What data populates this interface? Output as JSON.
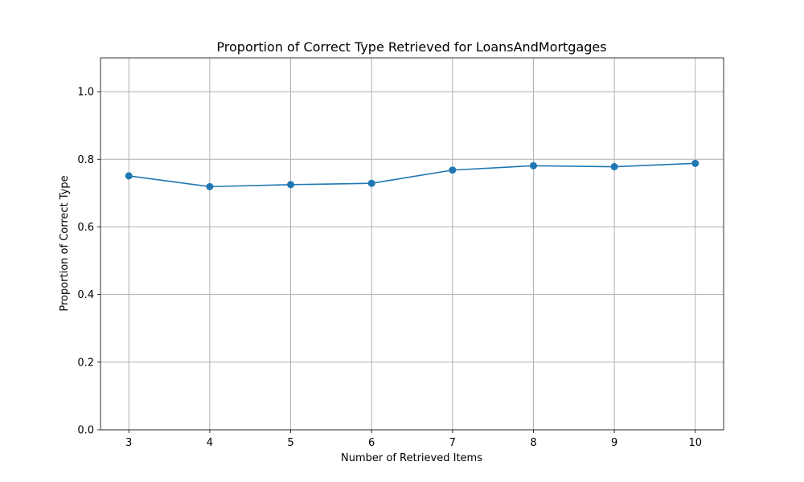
{
  "chart_data": {
    "type": "line",
    "title": "Proportion of Correct Type Retrieved for LoansAndMortgages",
    "xlabel": "Number of Retrieved Items",
    "ylabel": "Proportion of Correct Type",
    "x": [
      3,
      4,
      5,
      6,
      7,
      8,
      9,
      10
    ],
    "series": [
      {
        "values": [
          0.751,
          0.719,
          0.725,
          0.729,
          0.768,
          0.781,
          0.778,
          0.788
        ],
        "color": "#1f77b4",
        "marker": "circle"
      }
    ],
    "xlim": [
      2.65,
      10.35
    ],
    "ylim": [
      0,
      1.1
    ],
    "xticks": [
      "3",
      "4",
      "5",
      "6",
      "7",
      "8",
      "9",
      "10"
    ],
    "yticks": [
      "0.0",
      "0.2",
      "0.4",
      "0.6",
      "0.8",
      "1.0"
    ],
    "grid": true,
    "grid_color": "#b0b0b0",
    "legend": "none"
  }
}
